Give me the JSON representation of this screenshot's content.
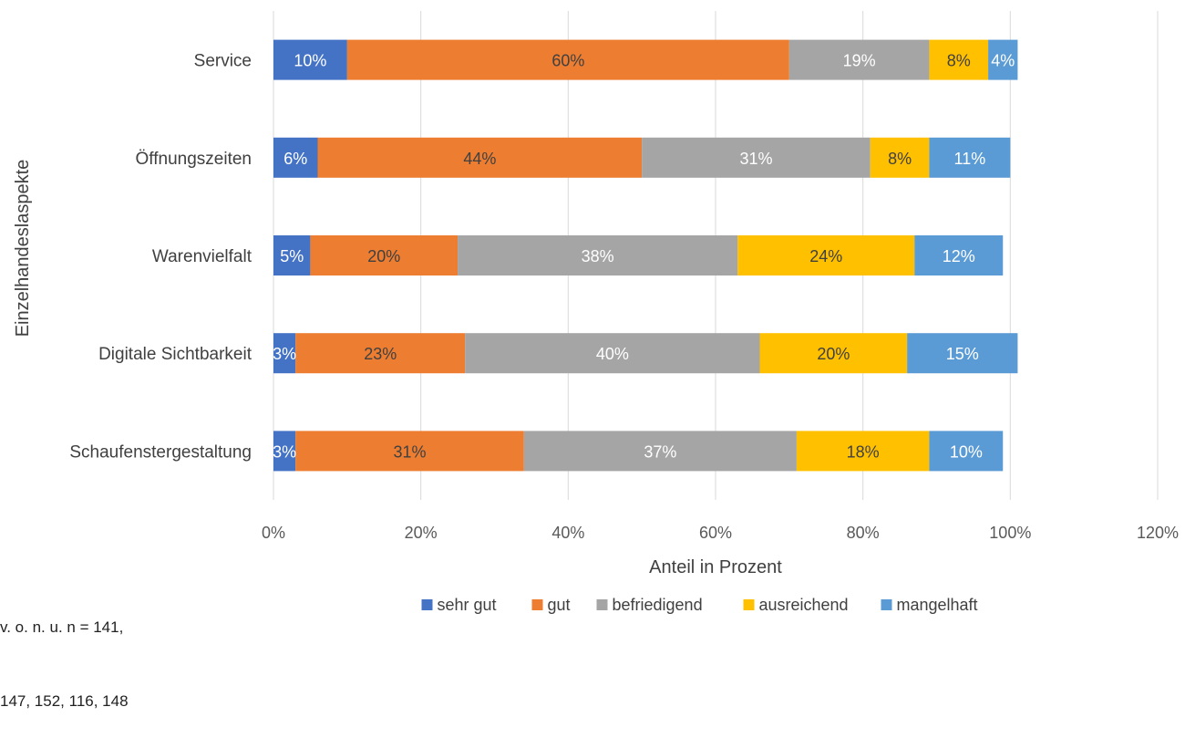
{
  "chart_data": {
    "type": "bar",
    "orientation": "horizontal",
    "stacked": true,
    "title": "",
    "ylabel": "Einzelhandeslaspekte",
    "xlabel": "Anteil in Prozent",
    "xlim": [
      0,
      120
    ],
    "xticks": [
      "0%",
      "20%",
      "40%",
      "60%",
      "80%",
      "100%",
      "120%"
    ],
    "grid": true,
    "legend_position": "bottom",
    "categories": [
      "Service",
      "Öffnungszeiten",
      "Warenvielfalt",
      "Digitale Sichtbarkeit",
      "Schaufenstergestaltung"
    ],
    "series": [
      {
        "name": "sehr gut",
        "color": "#4472C4",
        "label_color": "#ffffff",
        "values": [
          10,
          6,
          5,
          3,
          3
        ]
      },
      {
        "name": "gut",
        "color": "#ED7D31",
        "label_color": "#404040",
        "values": [
          60,
          44,
          20,
          23,
          31
        ]
      },
      {
        "name": "befriedigend",
        "color": "#A5A5A5",
        "label_color": "#ffffff",
        "values": [
          19,
          31,
          38,
          40,
          37
        ]
      },
      {
        "name": "ausreichend",
        "color": "#FFC000",
        "label_color": "#404040",
        "values": [
          8,
          8,
          24,
          20,
          18
        ]
      },
      {
        "name": "mangelhaft",
        "color": "#5B9BD5",
        "label_color": "#ffffff",
        "values": [
          4,
          11,
          12,
          15,
          10
        ]
      }
    ]
  },
  "note": {
    "line1": "v. o. n. u. n = 141,",
    "line2": "147, 152, 116, 148"
  }
}
